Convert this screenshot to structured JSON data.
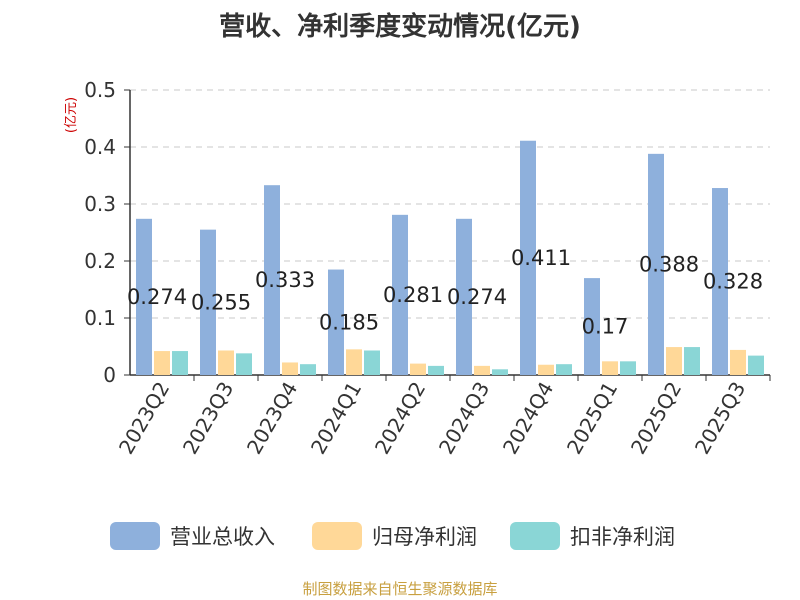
{
  "chart_data": {
    "type": "bar",
    "title": "营收、净利季度变动情况(亿元)",
    "ylabel": "(亿元)",
    "xlabel": "",
    "ylim": [
      0,
      0.5
    ],
    "yticks": [
      "0",
      "0.1",
      "0.2",
      "0.3",
      "0.4",
      "0.5"
    ],
    "grid": true,
    "legend_position": "bottom",
    "categories": [
      "2023Q2",
      "2023Q3",
      "2023Q4",
      "2024Q1",
      "2024Q2",
      "2024Q3",
      "2024Q4",
      "2025Q1",
      "2025Q2",
      "2025Q3"
    ],
    "series": [
      {
        "name": "营业总收入",
        "color": "#8eb0dc",
        "values": [
          0.274,
          0.255,
          0.333,
          0.185,
          0.281,
          0.274,
          0.411,
          0.17,
          0.388,
          0.328
        ]
      },
      {
        "name": "归母净利润",
        "color": "#ffd898",
        "values": [
          0.042,
          0.043,
          0.022,
          0.045,
          0.02,
          0.016,
          0.018,
          0.024,
          0.049,
          0.044
        ]
      },
      {
        "name": "扣非净利润",
        "color": "#8ad6d6",
        "values": [
          0.042,
          0.038,
          0.019,
          0.043,
          0.016,
          0.01,
          0.019,
          0.024,
          0.049,
          0.034
        ]
      }
    ],
    "data_labels": [
      "0.274",
      "0.255",
      "0.333",
      "0.185",
      "0.281",
      "0.274",
      "0.411",
      "0.17",
      "0.388",
      "0.328"
    ]
  },
  "footer": "制图数据来自恒生聚源数据库"
}
